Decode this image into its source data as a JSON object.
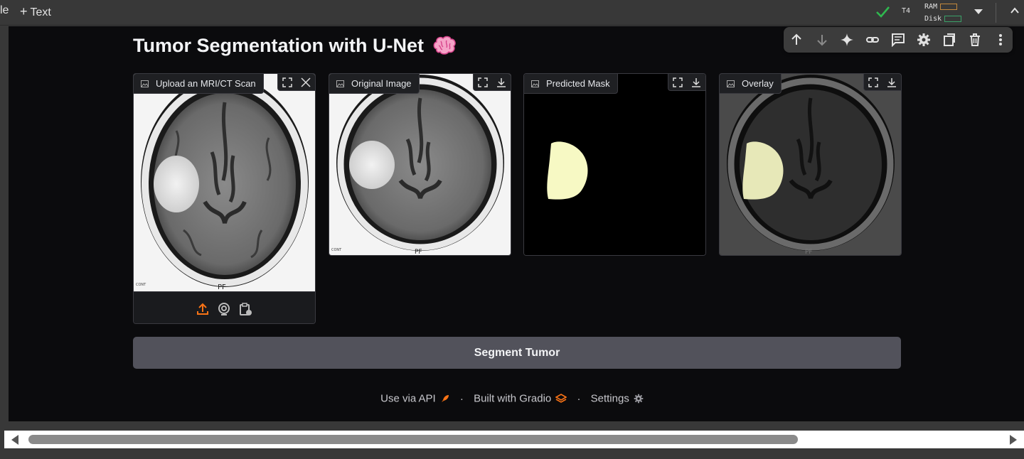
{
  "colab": {
    "menu_partial": "le",
    "add_text_label": "Text",
    "runtime_label": "T4",
    "ram_label": "RAM",
    "disk_label": "Disk",
    "status_color": "#2fb84f"
  },
  "cell_toolbar": {
    "icons": [
      "arrow-up-icon",
      "arrow-down-icon",
      "sparkle-icon",
      "link-icon",
      "comment-icon",
      "gear-icon",
      "mirror-cell-icon",
      "trash-icon",
      "more-vert-icon"
    ]
  },
  "app": {
    "title": "Tumor Segmentation with U-Net",
    "title_emoji": "brain-icon",
    "panels": [
      {
        "label": "Upload an MRI/CT Scan",
        "tools": [
          "fullscreen-icon",
          "close-icon"
        ]
      },
      {
        "label": "Original Image",
        "tools": [
          "fullscreen-icon",
          "download-icon"
        ]
      },
      {
        "label": "Predicted Mask",
        "tools": [
          "fullscreen-icon",
          "download-icon"
        ]
      },
      {
        "label": "Overlay",
        "tools": [
          "fullscreen-icon",
          "download-icon"
        ]
      }
    ],
    "upload_sources": [
      "upload-icon",
      "webcam-icon",
      "clipboard-icon"
    ],
    "upload_accent": "#f97316",
    "segment_button": "Segment Tumor",
    "mask_color": "#f7f9c4",
    "footer": {
      "api": "Use via API",
      "built": "Built with Gradio",
      "settings": "Settings",
      "separator": "·"
    }
  }
}
